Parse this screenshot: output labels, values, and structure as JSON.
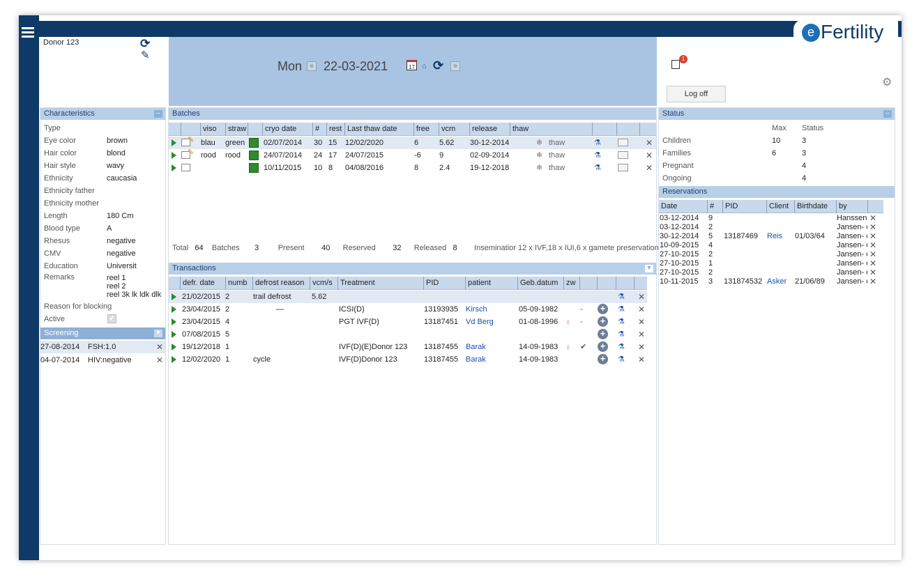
{
  "app": {
    "logo_e": "e",
    "logo_text": "Fertility"
  },
  "donor": {
    "name": "Donor 123"
  },
  "header": {
    "day": "Mon",
    "date": "22-03-2021",
    "notif_count": "1",
    "logoff": "Log off"
  },
  "characteristics": {
    "title": "Characteristics",
    "collapse": "--",
    "rows": [
      [
        "Type",
        ""
      ],
      [
        "Eye color",
        "brown"
      ],
      [
        "Hair color",
        "blond"
      ],
      [
        "Hair style",
        "wavy"
      ],
      [
        "Ethnicity",
        "caucasia"
      ],
      [
        "Ethnicity father",
        ""
      ],
      [
        "Ethnicity mother",
        ""
      ],
      [
        "Length",
        "180  Cm"
      ],
      [
        "Blood type",
        "A"
      ],
      [
        "Rhesus",
        "negative"
      ],
      [
        "CMV",
        "negative"
      ],
      [
        "Education",
        "Universit"
      ]
    ],
    "remarks_label": "Remarks",
    "remarks": [
      "reel 1",
      "reel 2",
      "reel 3k lk ldk dlk"
    ],
    "blocking_label": "Reason for blocking",
    "active_label": "Active"
  },
  "screening": {
    "title": "Screening",
    "rows": [
      [
        "27-08-2014",
        "FSH:1.0"
      ],
      [
        "04-07-2014",
        "HIV:negative"
      ]
    ]
  },
  "batches": {
    "title": "Batches",
    "cols": [
      "viso",
      "straw",
      "cryo date",
      "#",
      "rest",
      "Last thaw date",
      "free",
      "vcm",
      "release",
      "thaw"
    ],
    "rows": [
      {
        "viso": "blau",
        "straw": "green",
        "cryo": "02/07/2014",
        "n": "30",
        "rest": "15",
        "last": "12/02/2020",
        "free": "6",
        "vcm": "5.62",
        "release": "30-12-2014",
        "thaw": "thaw"
      },
      {
        "viso": "rood",
        "straw": "rood",
        "cryo": "24/07/2014",
        "n": "24",
        "rest": "17",
        "last": "24/07/2015",
        "free": "-6",
        "vcm": "9",
        "release": "02-09-2014",
        "thaw": "thaw"
      },
      {
        "viso": "",
        "straw": "",
        "cryo": "10/11/2015",
        "n": "10",
        "rest": "8",
        "last": "04/08/2016",
        "free": "8",
        "vcm": "2.4",
        "release": "19-12-2018",
        "thaw": "thaw"
      }
    ],
    "summary": {
      "total_l": "Total",
      "total": "64",
      "batches_l": "Batches",
      "batches": "3",
      "present_l": "Present",
      "present": "40",
      "reserved_l": "Reserved",
      "reserved": "32",
      "released_l": "Released",
      "released": "8",
      "insem": "Inseminatior 12 x IVF,18 x IUI,6 x gamete preservation"
    }
  },
  "transactions": {
    "title": "Transactions",
    "cols": [
      "defr. date",
      "numb",
      "defrost reason",
      "vcm/s",
      "Treatment",
      "PID",
      "patient",
      "Geb.datum",
      "zw"
    ],
    "rows": [
      {
        "date": "21/02/2015",
        "num": "2",
        "reason": "trail defrost",
        "vcm": "5.62",
        "treat": "",
        "pid": "",
        "patient": "",
        "geb": "",
        "zw": ""
      },
      {
        "date": "23/04/2015",
        "num": "2",
        "reason": "—",
        "vcm": "",
        "treat": "ICSI(D)",
        "pid": "13193935",
        "patient": "Kirsch",
        "geb": "05-09-1982",
        "zw": "-"
      },
      {
        "date": "23/04/2015",
        "num": "4",
        "reason": "",
        "vcm": "",
        "treat": "PGT IVF(D)",
        "pid": "13187451",
        "patient": "Vd Berg",
        "geb": "01-08-1996",
        "zw": "-"
      },
      {
        "date": "07/08/2015",
        "num": "5",
        "reason": "",
        "vcm": "",
        "treat": "",
        "pid": "",
        "patient": "",
        "geb": "",
        "zw": ""
      },
      {
        "date": "19/12/2018",
        "num": "1",
        "reason": "",
        "vcm": "",
        "treat": "IVF(D)(E)Donor 123",
        "pid": "13187455",
        "patient": "Barak",
        "geb": "14-09-1983",
        "zw": "✔"
      },
      {
        "date": "12/02/2020",
        "num": "1",
        "reason": "cycle",
        "vcm": "",
        "treat": "IVF(D)Donor 123",
        "pid": "13187455",
        "patient": "Barak",
        "geb": "14-09-1983",
        "zw": ""
      }
    ]
  },
  "status": {
    "title": "Status",
    "max_l": "Max",
    "status_l": "Status",
    "rows": [
      [
        "Children",
        "10",
        "3"
      ],
      [
        "Families",
        "6",
        "3"
      ],
      [
        "Pregnant",
        "",
        "4"
      ],
      [
        "Ongoing",
        "",
        "4"
      ]
    ]
  },
  "reservations": {
    "title": "Reservations",
    "cols": [
      "Date",
      "#",
      "PID",
      "Client",
      "Birthdate",
      "by"
    ],
    "rows": [
      [
        "03-12-2014",
        "9",
        "",
        "",
        "",
        "Hanssen,"
      ],
      [
        "03-12-2014",
        "2",
        "",
        "",
        "",
        "Jansen- c"
      ],
      [
        "30-12-2014",
        "5",
        "13187469",
        "Reis",
        "01/03/64",
        "Jansen- c"
      ],
      [
        "10-09-2015",
        "4",
        "",
        "",
        "",
        "Jansen- c"
      ],
      [
        "27-10-2015",
        "2",
        "",
        "",
        "",
        "Jansen- c"
      ],
      [
        "27-10-2015",
        "1",
        "",
        "",
        "",
        "Jansen- c"
      ],
      [
        "27-10-2015",
        "2",
        "",
        "",
        "",
        "Jansen- c"
      ],
      [
        "10-11-2015",
        "3",
        "131874532",
        "Asker",
        "21/06/89",
        "Jansen- c"
      ]
    ]
  }
}
